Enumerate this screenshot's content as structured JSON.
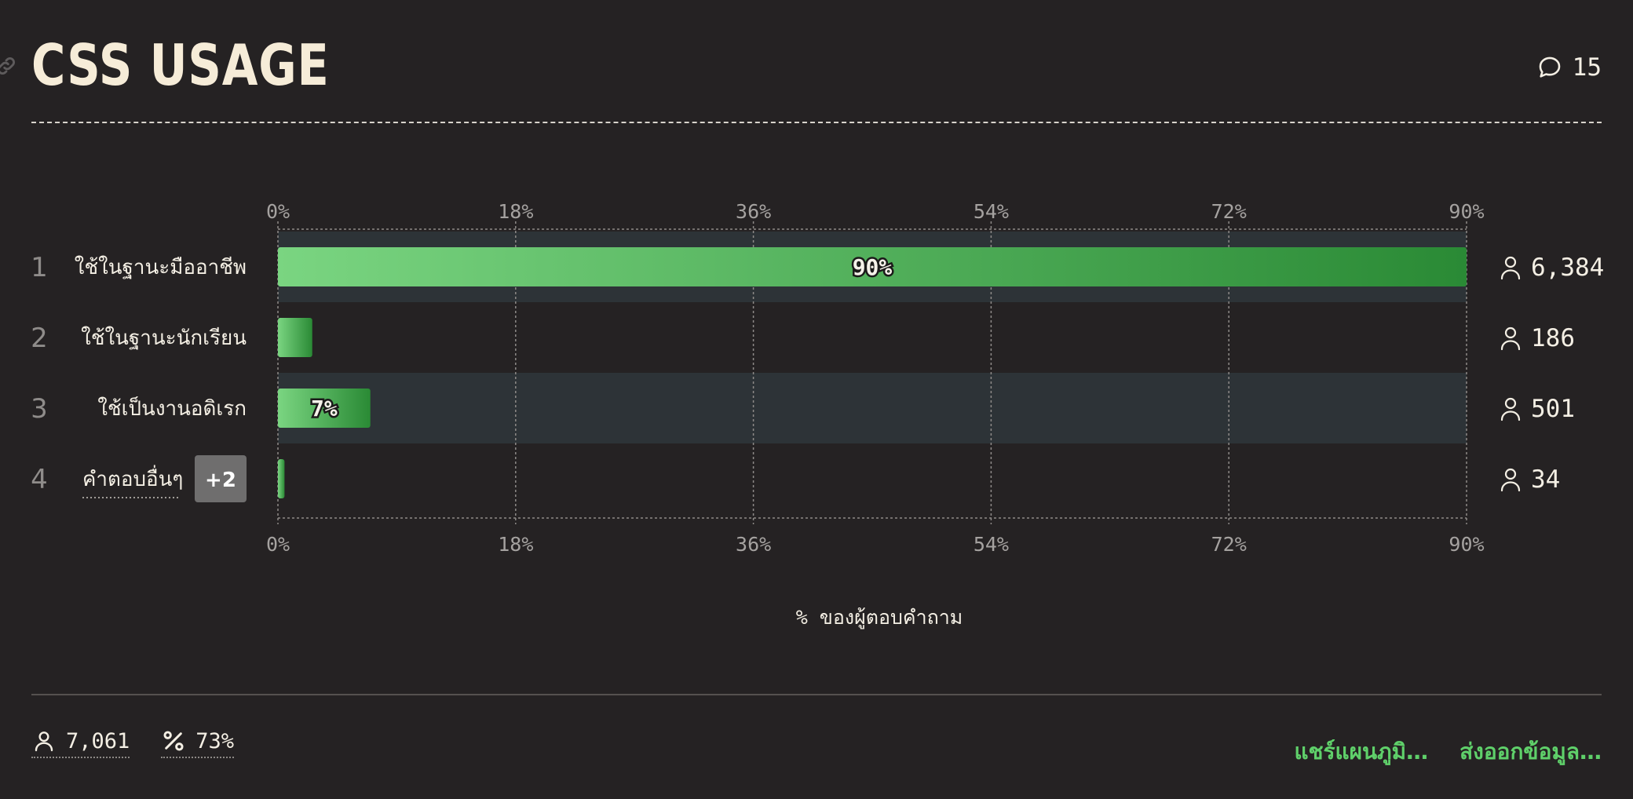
{
  "header": {
    "title": "CSS USAGE",
    "comment_count": "15"
  },
  "chart_data": {
    "type": "bar",
    "orientation": "horizontal",
    "categories": [
      "ใช้ในฐานะมืออาชีพ",
      "ใช้ในฐานะนักเรียน",
      "ใช้เป็นงานอดิเรก",
      "คำตอบอื่นๆ"
    ],
    "row_numbers": [
      "1",
      "2",
      "3",
      "4"
    ],
    "values": [
      90,
      2.6,
      7,
      0.5
    ],
    "bar_labels": [
      "90%",
      "",
      "7%",
      ""
    ],
    "counts": [
      "6,384",
      "186",
      "501",
      "34"
    ],
    "other_badge": "+2",
    "xticks": [
      "0%",
      "18%",
      "36%",
      "54%",
      "72%",
      "90%"
    ],
    "xlim": [
      0,
      90
    ],
    "xlabel": "% ของผู้ตอบคำถาม",
    "grid": true,
    "colors": {
      "bar_start": "#7ad581",
      "bar_end": "#2a8a35",
      "row_highlight": "#2d3337",
      "badge": "#6f6e6e"
    }
  },
  "footer": {
    "respondents": "7,061",
    "percent": "73%",
    "share_label": "แชร์แผนภูมิ…",
    "export_label": "ส่งออกข้อมูล…"
  }
}
